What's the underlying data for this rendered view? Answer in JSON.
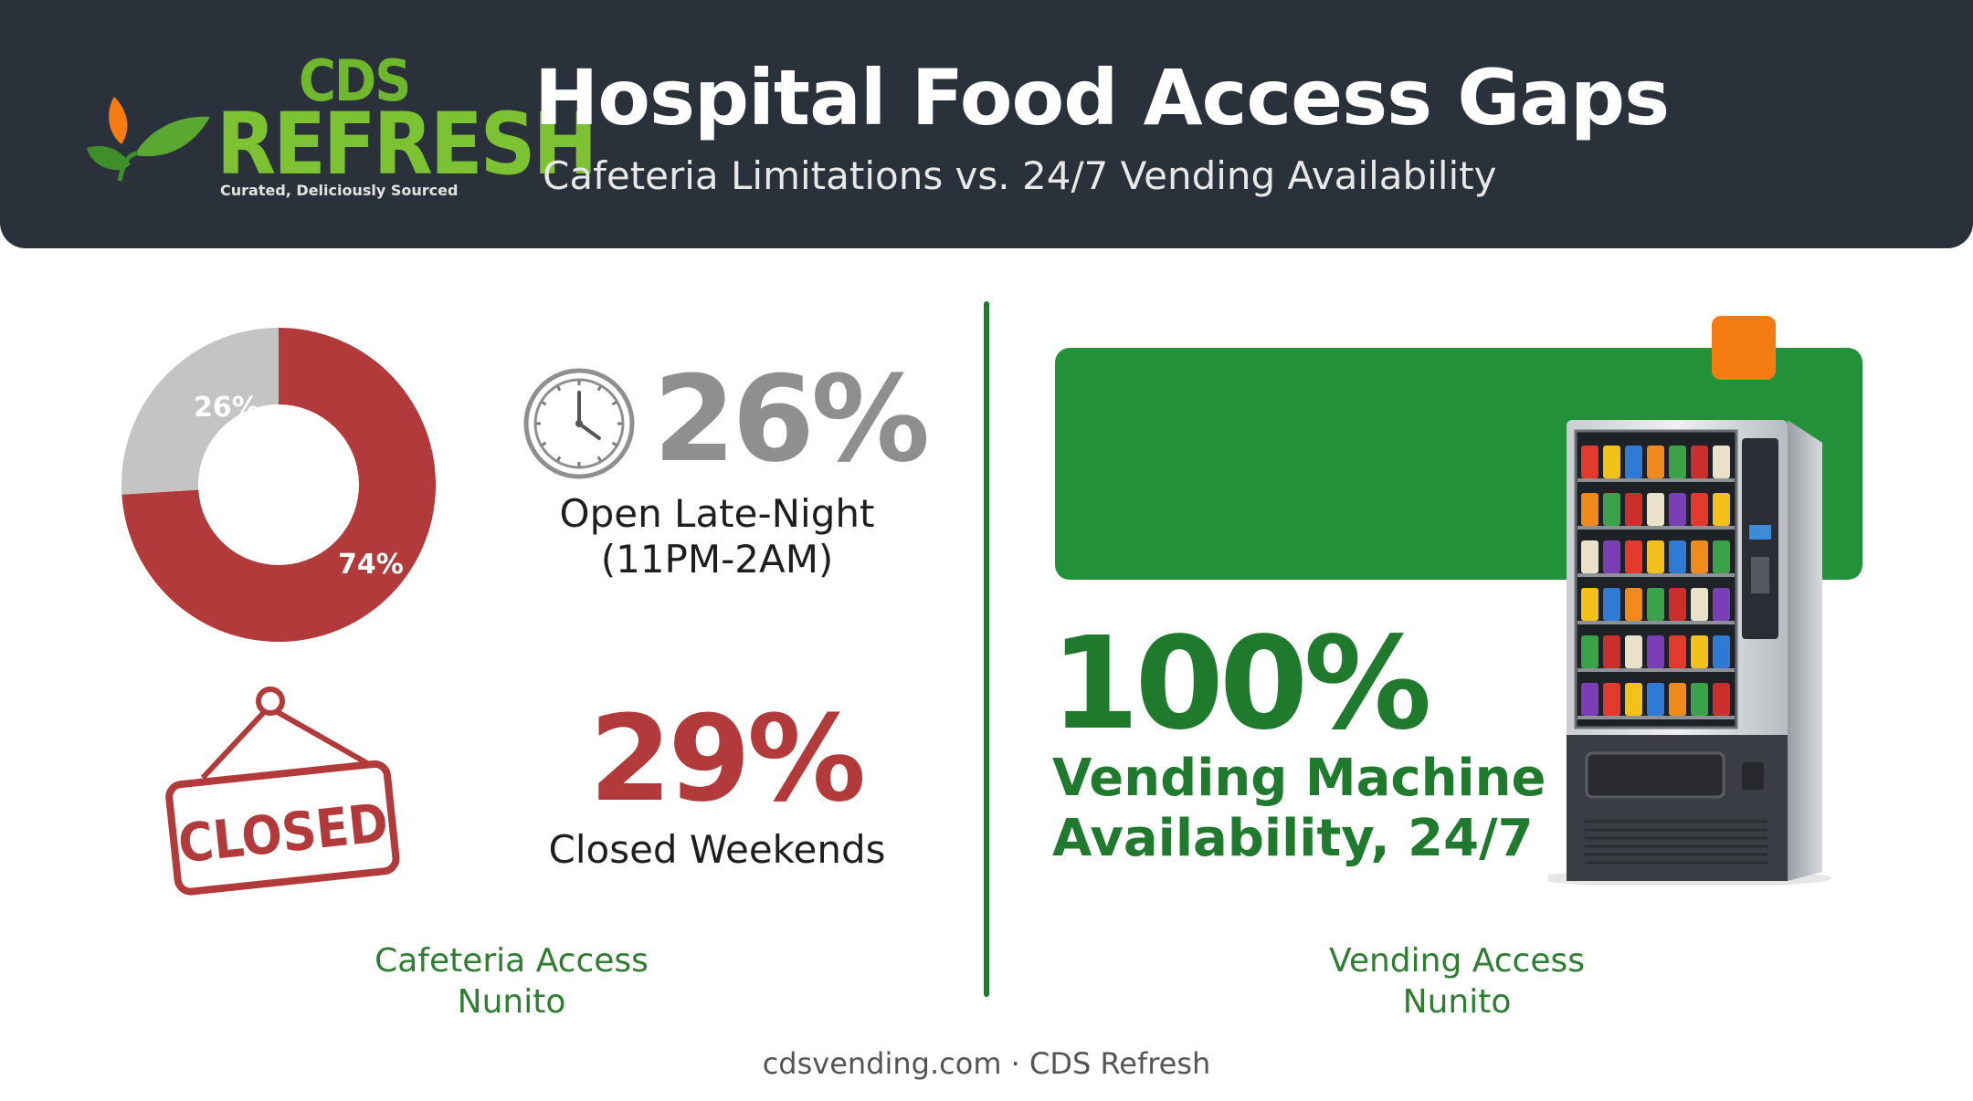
{
  "header": {
    "title": "Hospital Food Access Gaps",
    "subtitle": "Cafeteria Limitations vs. 24/7 Vending Availability"
  },
  "logo": {
    "line1": "CDS",
    "line2": "REFRESH",
    "tagline": "Curated, Deliciously Sourced",
    "leaf_colors": [
      "#f47c12",
      "#5aa832",
      "#3e8f2a"
    ]
  },
  "cafeteria": {
    "donut": {
      "open_pct": 26,
      "closed_pct": 74,
      "open_label": "26%",
      "closed_label": "74%",
      "open_color": "#c4c4c4",
      "closed_color": "#b23a3a"
    },
    "late_night": {
      "value": "26%",
      "label_line1": "Open Late-Night",
      "label_line2": "(11PM-2AM)",
      "icon": "clock-icon"
    },
    "weekends": {
      "value": "29%",
      "label": "Closed Weekends",
      "sign_text": "CLOSED",
      "icon": "closed-sign-icon"
    },
    "caption_line1": "Cafeteria Access",
    "caption_line2": "Nunito"
  },
  "vending": {
    "value": "100%",
    "label_line1": "Vending Machine",
    "label_line2": "Availability, 24/7",
    "caption_line1": "Vending Access",
    "caption_line2": "Nunito",
    "accent_green": "#23913a",
    "accent_orange": "#f47c12",
    "image": "vending-machine"
  },
  "footer": {
    "text": "cdsvending.com · CDS Refresh"
  }
}
